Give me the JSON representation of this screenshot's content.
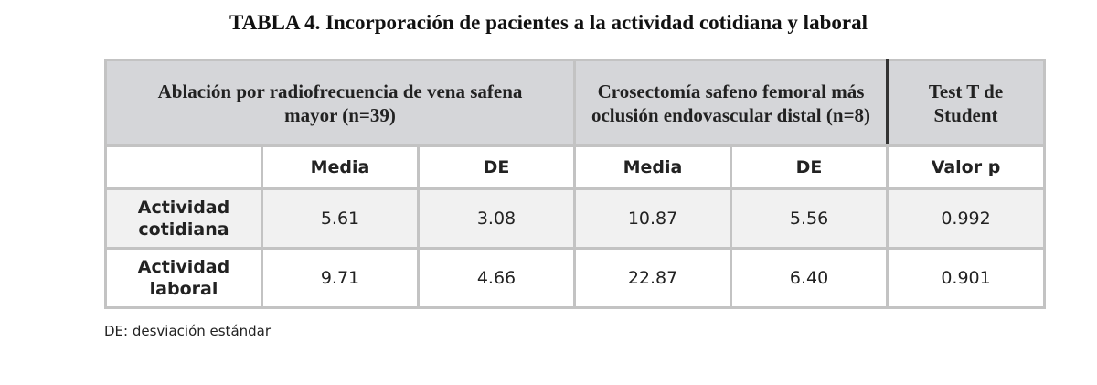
{
  "header": {
    "title": "TABLA 4. Incorporación de pacientes a la actividad cotidiana y laboral"
  },
  "table": {
    "groups": [
      "Ablación por radiofrecuencia de vena safena mayor (n=39)",
      "Crosectomía safeno femoral más oclusión endovascular distal (n=8)",
      "Test T de Student"
    ],
    "columns": [
      "Media",
      "DE",
      "Media",
      "DE",
      "Valor p"
    ],
    "rows": [
      {
        "label": "Actividad cotidiana",
        "values": [
          "5.61",
          "3.08",
          "10.87",
          "5.56",
          "0.992"
        ]
      },
      {
        "label": "Actividad laboral",
        "values": [
          "9.71",
          "4.66",
          "22.87",
          "6.40",
          "0.901"
        ]
      }
    ]
  },
  "footnote": "DE: desviación estándar"
}
